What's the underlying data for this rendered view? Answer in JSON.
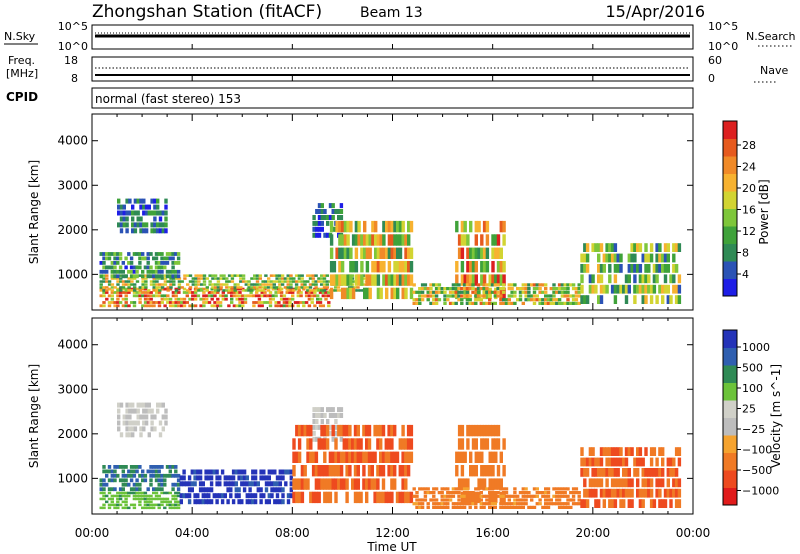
{
  "header": {
    "station": "Zhongshan Station (fitACF)",
    "beam": "Beam 13",
    "date": "15/Apr/2016"
  },
  "aux_panels": {
    "nsky_label": "N.Sky",
    "nsky_ticks": [
      "10^5",
      "10^0"
    ],
    "nsearch_label": "N.Search",
    "nsearch_ticks": [
      "10^5",
      "10^0"
    ],
    "freq_label_1": "Freq.",
    "freq_label_2": "[MHz]",
    "freq_ticks": [
      "18",
      "8"
    ],
    "nave_label": "Nave",
    "nave_ticks": [
      "60",
      "0"
    ],
    "cpid_label": "CPID",
    "cpid_text": "normal (fast stereo) 153"
  },
  "colors": {
    "power_scale": [
      "#1e1ee6",
      "#2a52b5",
      "#2f8a55",
      "#3fa23a",
      "#7ec63a",
      "#d2d432",
      "#f7b230",
      "#f08a28",
      "#e65a1e",
      "#dc2020"
    ],
    "velocity_scale": [
      "#e11b1b",
      "#ee4a1f",
      "#f07a25",
      "#f5a32f",
      "#bdbdbd",
      "#d0d0c8",
      "#6cc33a",
      "#2f8a55",
      "#2f5fb0",
      "#2433b8"
    ]
  },
  "chart_data": [
    {
      "type": "heatmap",
      "name": "power",
      "ylabel": "Slant Range [km]",
      "xlabel": "Time UT",
      "ylim": [
        200,
        4600
      ],
      "xlim": [
        0,
        24
      ],
      "x_ticks": [
        "00:00",
        "04:00",
        "08:00",
        "12:00",
        "16:00",
        "20:00",
        "00:00"
      ],
      "y_ticks": [
        1000,
        2000,
        3000,
        4000
      ],
      "colorbar": {
        "label": "Power [dB]",
        "ticks": [
          "28",
          "24",
          "20",
          "16",
          "12",
          "8",
          "4"
        ],
        "range": [
          0,
          32
        ]
      },
      "regions": [
        {
          "t0": 0.3,
          "t1": 9.5,
          "r0": 250,
          "r1": 700,
          "value": 24
        },
        {
          "t0": 0.3,
          "t1": 11.0,
          "r0": 600,
          "r1": 1000,
          "value": 16
        },
        {
          "t0": 0.3,
          "t1": 3.5,
          "r0": 900,
          "r1": 1500,
          "value": 9
        },
        {
          "t0": 1.0,
          "t1": 3.0,
          "r0": 1900,
          "r1": 2700,
          "value": 6
        },
        {
          "t0": 8.8,
          "t1": 10.0,
          "r0": 1800,
          "r1": 2600,
          "value": 6
        },
        {
          "t0": 9.5,
          "t1": 12.8,
          "r0": 400,
          "r1": 2200,
          "value": 18
        },
        {
          "t0": 14.5,
          "t1": 16.5,
          "r0": 400,
          "r1": 2200,
          "value": 20
        },
        {
          "t0": 12.8,
          "t1": 19.5,
          "r0": 300,
          "r1": 800,
          "value": 17
        },
        {
          "t0": 19.5,
          "t1": 23.5,
          "r0": 300,
          "r1": 1700,
          "value": 13
        }
      ]
    },
    {
      "type": "heatmap",
      "name": "velocity",
      "ylabel": "Slant Range [km]",
      "xlabel": "Time UT",
      "ylim": [
        200,
        4600
      ],
      "xlim": [
        0,
        24
      ],
      "x_ticks": [
        "00:00",
        "04:00",
        "08:00",
        "12:00",
        "16:00",
        "20:00",
        "00:00"
      ],
      "y_ticks": [
        1000,
        2000,
        3000,
        4000
      ],
      "colorbar": {
        "label": "Velocity [m s^-1]",
        "ticks": [
          "1000",
          "500",
          "100",
          "25",
          "−25",
          "−100",
          "−500",
          "−1000"
        ],
        "range": [
          -1000,
          1000
        ]
      },
      "regions": [
        {
          "t0": 0.3,
          "t1": 3.5,
          "r0": 300,
          "r1": 700,
          "value": 80
        },
        {
          "t0": 0.3,
          "t1": 3.5,
          "r0": 700,
          "r1": 1300,
          "value": 300
        },
        {
          "t0": 3.5,
          "t1": 8.0,
          "r0": 400,
          "r1": 1200,
          "value": 700
        },
        {
          "t0": 1.0,
          "t1": 3.0,
          "r0": 1900,
          "r1": 2700,
          "value": 0
        },
        {
          "t0": 8.8,
          "t1": 10.0,
          "r0": 1800,
          "r1": 2600,
          "value": 0
        },
        {
          "t0": 8.0,
          "t1": 12.8,
          "r0": 400,
          "r1": 2200,
          "value": -300
        },
        {
          "t0": 14.5,
          "t1": 16.5,
          "r0": 400,
          "r1": 2200,
          "value": -200
        },
        {
          "t0": 12.8,
          "t1": 19.5,
          "r0": 300,
          "r1": 800,
          "value": -150
        },
        {
          "t0": 19.5,
          "t1": 23.5,
          "r0": 300,
          "r1": 1700,
          "value": -300
        }
      ]
    }
  ]
}
